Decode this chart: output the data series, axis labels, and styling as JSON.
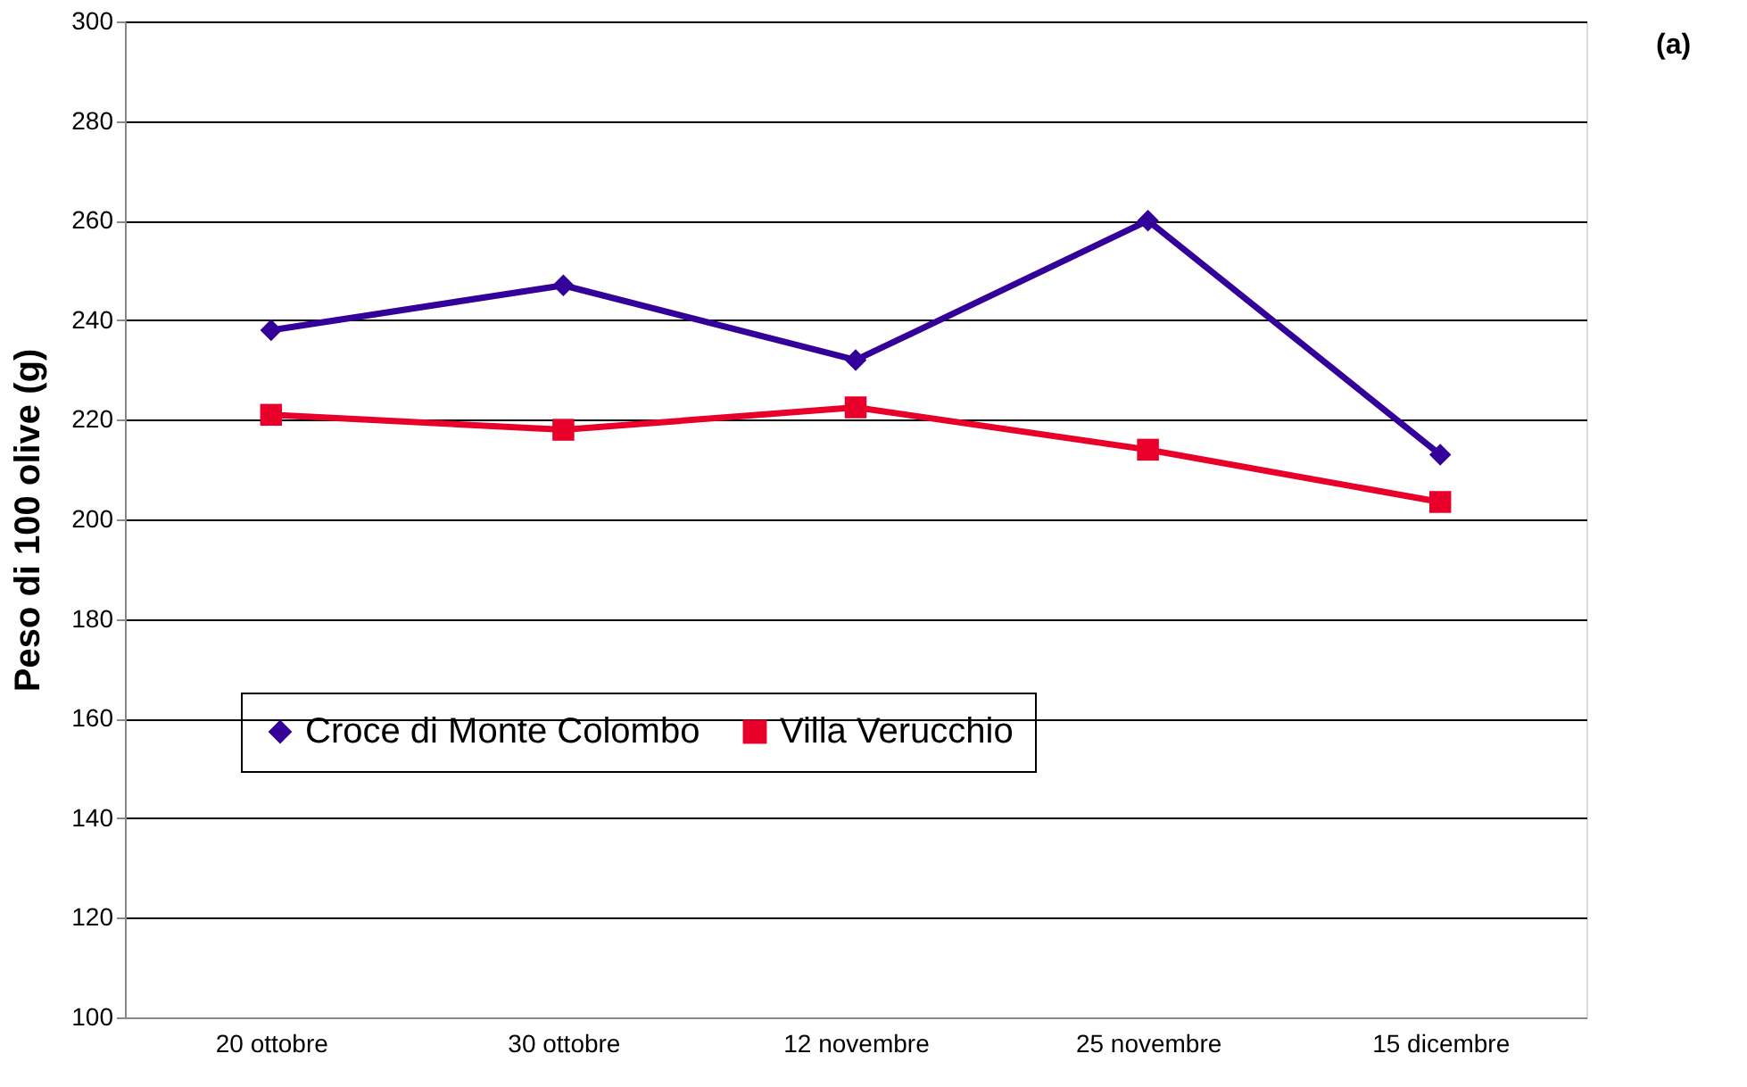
{
  "chart_data": {
    "type": "line",
    "ylabel": "Peso di 100 olive (g)",
    "annotations": [
      "(a)"
    ],
    "categories": [
      "20 ottobre",
      "30 ottobre",
      "12 novembre",
      "25 novembre",
      "15 dicembre"
    ],
    "series": [
      {
        "name": "Croce di Monte Colombo",
        "color": "#330099",
        "marker": "diamond",
        "values": [
          238,
          247,
          232,
          260,
          213
        ]
      },
      {
        "name": "Villa Verucchio",
        "color": "#e8002a",
        "marker": "square",
        "values": [
          221,
          218,
          222.5,
          214,
          203.5
        ]
      }
    ],
    "ylim": [
      100,
      300
    ],
    "yticks": [
      100,
      120,
      140,
      160,
      180,
      200,
      220,
      240,
      260,
      280,
      300
    ],
    "grid": "y",
    "legend": "left",
    "line_style": "solid"
  }
}
